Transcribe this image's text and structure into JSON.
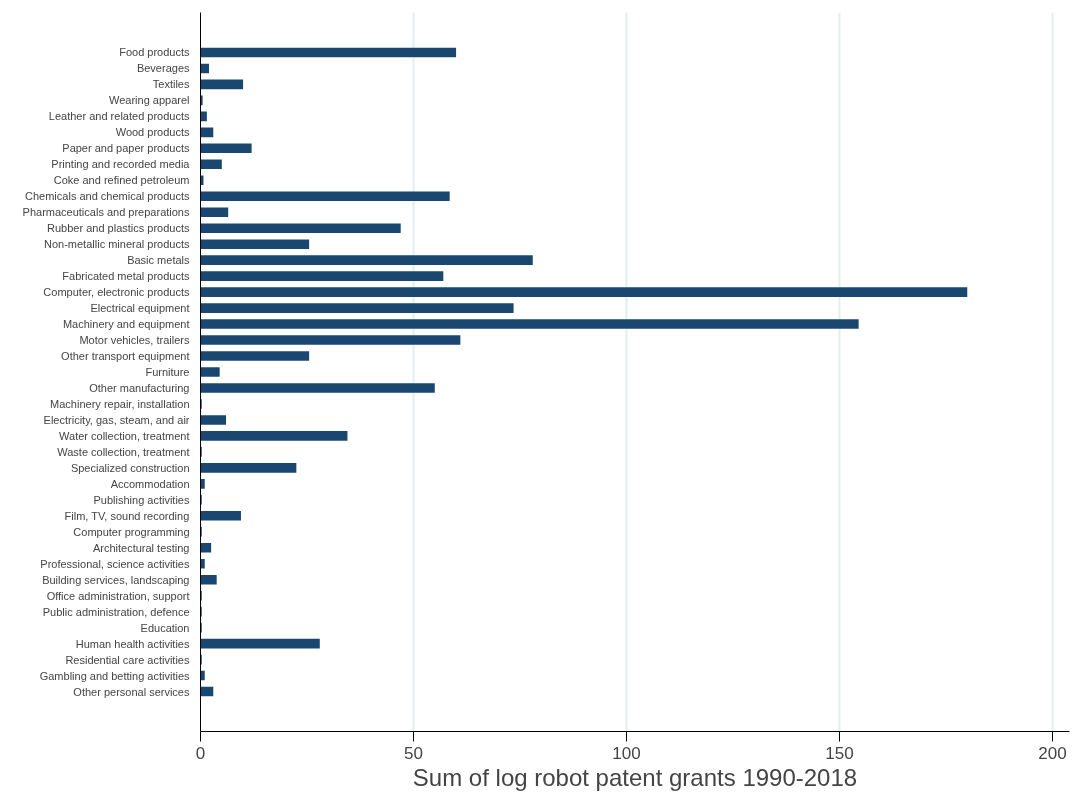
{
  "chart_data": {
    "type": "bar",
    "orientation": "horizontal",
    "xlabel": "Sum of log robot patent grants 1990-2018",
    "categories": [
      "Food products",
      "Beverages",
      "Textiles",
      "Wearing apparel",
      "Leather and related products",
      "Wood products",
      "Paper and paper products",
      "Printing and recorded media",
      "Coke and refined petroleum",
      "Chemicals and chemical products",
      "Pharmaceuticals and preparations",
      "Rubber and plastics products",
      "Non-metallic mineral products",
      "Basic metals",
      "Fabricated metal products",
      "Computer, electronic products",
      "Electrical equipment",
      "Machinery and equipment",
      "Motor vehicles, trailers",
      "Other transport equipment",
      "Furniture",
      "Other manufacturing",
      "Machinery repair, installation",
      "Electricity, gas, steam, and air",
      "Water collection, treatment",
      "Waste collection, treatment",
      "Specialized construction",
      "Accommodation",
      "Publishing activities",
      "Film, TV, sound recording",
      "Computer programming",
      "Architectural testing",
      "Professional, science activities",
      "Building services, landscaping",
      "Office administration, support",
      "Public administration, defence",
      "Education",
      "Human health activities",
      "Residential care activities",
      "Gambling and betting activities",
      "Other personal services"
    ],
    "values": [
      60,
      2,
      10,
      0.5,
      1.5,
      3,
      12,
      5,
      0.7,
      58.5,
      6.5,
      47,
      25.5,
      78,
      57,
      180,
      73.5,
      154.5,
      61,
      25.5,
      4.5,
      55,
      0.3,
      6,
      34.5,
      0.3,
      22.5,
      1,
      0.3,
      9.5,
      0.3,
      2.5,
      1,
      3.8,
      0.3,
      0.3,
      0.3,
      28,
      0.3,
      1,
      3
    ],
    "color": "#1a476f",
    "xlim": [
      0,
      204
    ],
    "xticks": [
      0,
      50,
      100,
      150,
      200
    ],
    "grid": "x"
  }
}
